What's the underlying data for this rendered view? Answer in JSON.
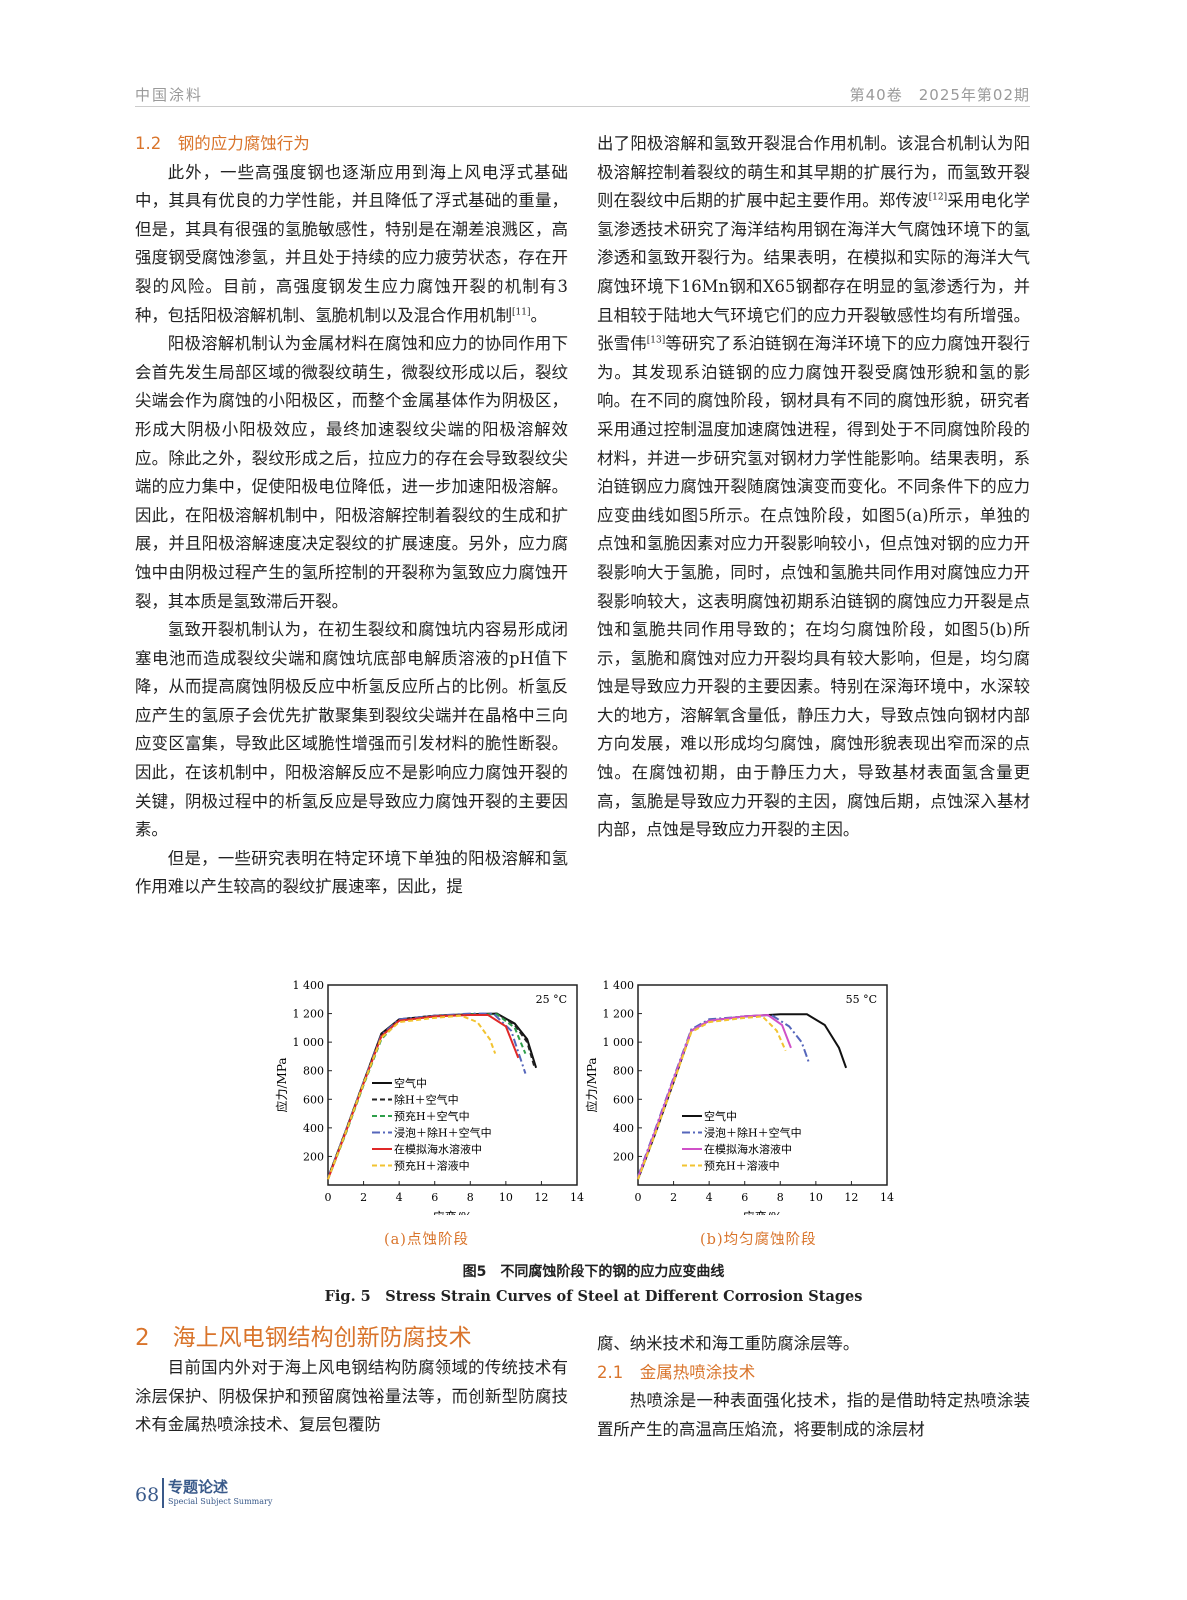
{
  "header": {
    "journal": "中国涂料",
    "issue": "第40卷　2025年第02期"
  },
  "left_col": {
    "h": "1.2　钢的应力腐蚀行为",
    "p1": "此外，一些高强度钢也逐渐应用到海上风电浮式基础中，其具有优良的力学性能，并且降低了浮式基础的重量，但是，其具有很强的氢脆敏感性，特别是在潮差浪溅区，高强度钢受腐蚀渗氢，并且处于持续的应力疲劳状态，存在开裂的风险。目前，高强度钢发生应力腐蚀开裂的机制有3种，包括阳极溶解机制、氢脆机制以及混合作用机制",
    "p1_ref": "[11]",
    "p1_end": "。",
    "p2": "阳极溶解机制认为金属材料在腐蚀和应力的协同作用下会首先发生局部区域的微裂纹萌生，微裂纹形成以后，裂纹尖端会作为腐蚀的小阳极区，而整个金属基体作为阴极区，形成大阴极小阳极效应，最终加速裂纹尖端的阳极溶解效应。除此之外，裂纹形成之后，拉应力的存在会导致裂纹尖端的应力集中，促使阳极电位降低，进一步加速阳极溶解。因此，在阳极溶解机制中，阳极溶解控制着裂纹的生成和扩展，并且阳极溶解速度决定裂纹的扩展速度。另外，应力腐蚀中由阴极过程产生的氢所控制的开裂称为氢致应力腐蚀开裂，其本质是氢致滞后开裂。",
    "p3": "氢致开裂机制认为，在初生裂纹和腐蚀坑内容易形成闭塞电池而造成裂纹尖端和腐蚀坑底部电解质溶液的pH值下降，从而提高腐蚀阴极反应中析氢反应所占的比例。析氢反应产生的氢原子会优先扩散聚集到裂纹尖端并在晶格中三向应变区富集，导致此区域脆性增强而引发材料的脆性断裂。因此，在该机制中，阳极溶解反应不是影响应力腐蚀开裂的关键，阴极过程中的析氢反应是导致应力腐蚀开裂的主要因素。",
    "p4": "但是，一些研究表明在特定环境下单独的阳极溶解和氢作用难以产生较高的裂纹扩展速率，因此，提"
  },
  "right_col": {
    "p1a": "出了阳极溶解和氢致开裂混合作用机制。该混合机制认为阳极溶解控制着裂纹的萌生和其早期的扩展行为，而氢致开裂则在裂纹中后期的扩展中起主要作用。郑传波",
    "ref12": "[12]",
    "p1b": "采用电化学氢渗透技术研究了海洋结构用钢在海洋大气腐蚀环境下的氢渗透和氢致开裂行为。结果表明，在模拟和实际的海洋大气腐蚀环境下16Mn钢和X65钢都存在明显的氢渗透行为，并且相较于陆地大气环境它们的应力开裂敏感性均有所增强。张雪伟",
    "ref13": "[13]",
    "p1c": "等研究了系泊链钢在海洋环境下的应力腐蚀开裂行为。其发现系泊链钢的应力腐蚀开裂受腐蚀形貌和氢的影响。在不同的腐蚀阶段，钢材具有不同的腐蚀形貌，研究者采用通过控制温度加速腐蚀进程，得到处于不同腐蚀阶段的材料，并进一步研究氢对钢材力学性能影响。结果表明，系泊链钢应力腐蚀开裂随腐蚀演变而变化。不同条件下的应力应变曲线如图5所示。在点蚀阶段，如图5(a)所示，单独的点蚀和氢脆因素对应力开裂影响较小，但点蚀对钢的应力开裂影响大于氢脆，同时，点蚀和氢脆共同作用对腐蚀应力开裂影响较大，这表明腐蚀初期系泊链钢的腐蚀应力开裂是点蚀和氢脆共同作用导致的；在均匀腐蚀阶段，如图5(b)所示，氢脆和腐蚀对应力开裂均具有较大影响，但是，均匀腐蚀是导致应力开裂的主要因素。特别在深海环境中，水深较大的地方，溶解氧含量低，静压力大，导致点蚀向钢材内部方向发展，难以形成均匀腐蚀，腐蚀形貌表现出窄而深的点蚀。在腐蚀初期，由于静压力大，导致基材表面氢含量更高，氢脆是导致应力开裂的主因，腐蚀后期，点蚀深入基材内部，点蚀是导致应力开裂的主因。"
  },
  "figure": {
    "sub_a": "(a)点蚀阶段",
    "sub_b": "(b)均匀腐蚀阶段",
    "caption_cn": "图5　不同腐蚀阶段下的钢的应力应变曲线",
    "caption_en": "Fig. 5　Stress Strain Curves of Steel at Different Corrosion Stages"
  },
  "chart_data": [
    {
      "type": "line",
      "annotation": "25 °C",
      "xlabel": "应变/%",
      "ylabel": "应力/MPa",
      "xlim": [
        0,
        14
      ],
      "ylim": [
        0,
        1400
      ],
      "xticks": [
        "0",
        "2",
        "4",
        "6",
        "8",
        "10",
        "12",
        "14"
      ],
      "yticks": [
        "200",
        "400",
        "600",
        "800",
        "1 000",
        "1 200",
        "1 400"
      ],
      "legend": "bottom-left",
      "grid": false,
      "series": [
        {
          "name": "空气中",
          "color": "#111111",
          "dash": "solid",
          "x": [
            0,
            1,
            2,
            3,
            4,
            6,
            8,
            9.5,
            10.5,
            11.2,
            11.7
          ],
          "y": [
            50,
            380,
            720,
            1060,
            1160,
            1185,
            1195,
            1200,
            1130,
            1020,
            820
          ]
        },
        {
          "name": "除H＋空气中",
          "color": "#222222",
          "dash": "dash",
          "x": [
            0,
            1,
            2,
            3,
            4,
            6,
            8,
            9.5,
            10.5,
            11.2,
            11.6
          ],
          "y": [
            50,
            380,
            720,
            1050,
            1160,
            1185,
            1195,
            1200,
            1120,
            1000,
            830
          ]
        },
        {
          "name": "预充H＋空气中",
          "color": "#2e9e4a",
          "dash": "dash",
          "x": [
            0,
            1,
            2,
            3,
            4,
            6,
            8,
            9.5,
            10.5,
            11.1
          ],
          "y": [
            40,
            360,
            700,
            1020,
            1150,
            1180,
            1195,
            1195,
            1100,
            920
          ]
        },
        {
          "name": "浸泡＋除H＋空气中",
          "color": "#5566bb",
          "dash": "dashdot",
          "x": [
            0,
            1,
            2,
            3,
            4,
            6,
            8,
            9.3,
            10.3,
            11.1
          ],
          "y": [
            50,
            380,
            720,
            1050,
            1160,
            1185,
            1200,
            1200,
            1080,
            780
          ]
        },
        {
          "name": "在模拟海水溶液中",
          "color": "#e02828",
          "dash": "solid",
          "x": [
            0,
            1,
            2,
            3,
            4,
            6,
            8,
            9,
            10,
            10.7
          ],
          "y": [
            40,
            370,
            710,
            1040,
            1150,
            1180,
            1190,
            1190,
            1110,
            890
          ]
        },
        {
          "name": "预充H＋溶液中",
          "color": "#f2c330",
          "dash": "dash",
          "x": [
            0,
            1,
            2,
            3,
            4,
            6,
            7.5,
            8.4,
            9.1,
            9.4
          ],
          "y": [
            40,
            370,
            710,
            1030,
            1140,
            1170,
            1185,
            1140,
            1020,
            920
          ]
        }
      ]
    },
    {
      "type": "line",
      "annotation": "55 °C",
      "xlabel": "应变/%",
      "ylabel": "应力/MPa",
      "xlim": [
        0,
        14
      ],
      "ylim": [
        0,
        1400
      ],
      "xticks": [
        "0",
        "2",
        "4",
        "6",
        "8",
        "10",
        "12",
        "14"
      ],
      "yticks": [
        "200",
        "400",
        "600",
        "800",
        "1 000",
        "1 200",
        "1 400"
      ],
      "legend": "bottom-left",
      "grid": false,
      "series": [
        {
          "name": "空气中",
          "color": "#111111",
          "dash": "solid",
          "x": [
            0,
            1,
            2,
            3,
            4,
            6,
            8,
            9.5,
            10.5,
            11.3,
            11.7
          ],
          "y": [
            40,
            370,
            720,
            1080,
            1150,
            1180,
            1195,
            1195,
            1120,
            960,
            820
          ]
        },
        {
          "name": "浸泡＋除H＋空气中",
          "color": "#5566bb",
          "dash": "dashdot",
          "x": [
            0,
            1,
            2,
            3,
            4,
            6,
            7.5,
            8.5,
            9.2,
            9.6
          ],
          "y": [
            60,
            400,
            750,
            1090,
            1160,
            1180,
            1190,
            1110,
            1000,
            860
          ]
        },
        {
          "name": "在模拟海水溶液中",
          "color": "#d050c8",
          "dash": "solid",
          "x": [
            0,
            1,
            2,
            3,
            4,
            6,
            7.3,
            8.1,
            8.6
          ],
          "y": [
            50,
            390,
            740,
            1080,
            1150,
            1180,
            1190,
            1120,
            960
          ]
        },
        {
          "name": "预充H＋溶液中",
          "color": "#f2c330",
          "dash": "dash",
          "x": [
            0,
            1,
            2,
            3,
            4,
            6,
            7,
            7.8,
            8.3
          ],
          "y": [
            40,
            370,
            720,
            1070,
            1140,
            1170,
            1180,
            1080,
            940
          ]
        }
      ]
    }
  ],
  "section2": {
    "h": "2　海上风电钢结构创新防腐技术",
    "p1": "目前国内外对于海上风电钢结构防腐领域的传统技术有涂层保护、阴极保护和预留腐蚀裕量法等，而创新型防腐技术有金属热喷涂技术、复层包覆防",
    "p1_cont": "腐、纳米技术和海工重防腐涂层等。",
    "h21": "2.1　金属热喷涂技术",
    "p2": "热喷涂是一种表面强化技术，指的是借助特定热喷涂装置所产生的高温高压焰流，将要制成的涂层材"
  },
  "footer": {
    "page": "68",
    "section_cn": "专题论述",
    "section_en": "Special Subject Summary"
  }
}
